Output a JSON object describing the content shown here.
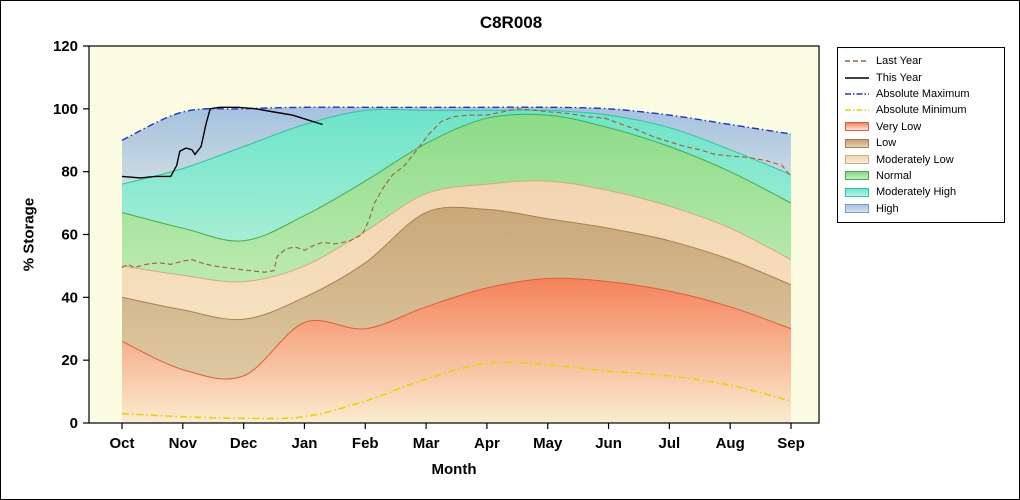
{
  "chart_data": {
    "type": "area",
    "title": "C8R008",
    "xlabel": "Month",
    "ylabel": "% Storage",
    "ylim": [
      0,
      120
    ],
    "y_ticks": [
      0,
      20,
      40,
      60,
      80,
      100,
      120
    ],
    "months": [
      "Oct",
      "Nov",
      "Dec",
      "Jan",
      "Feb",
      "Mar",
      "Apr",
      "May",
      "Jun",
      "Jul",
      "Aug",
      "Sep"
    ],
    "colors": {
      "plot_bg": "#FBFCE2",
      "abs_min": "#E5D400",
      "abs_max": "#2233BB",
      "last_year": "#A65E2E",
      "this_year": "#000000"
    },
    "series": {
      "abs_min": [
        3,
        2,
        1.5,
        2,
        7,
        14,
        19,
        18.5,
        16.5,
        15,
        12,
        7
      ],
      "very_low_top": [
        26,
        17,
        15,
        32,
        30,
        37,
        43,
        46,
        45,
        42,
        37,
        30
      ],
      "low_top": [
        40,
        36,
        33,
        40,
        51,
        67,
        68,
        65,
        62,
        58,
        52,
        44
      ],
      "mod_low_top": [
        50,
        47,
        45,
        50,
        61,
        73,
        76,
        77,
        74,
        69,
        62,
        52
      ],
      "normal_top": [
        67,
        62,
        58,
        66,
        77,
        89,
        97,
        98,
        94,
        88,
        80,
        70
      ],
      "mod_high_top": [
        76,
        81,
        88,
        95,
        99.5,
        99.5,
        99.5,
        99.5,
        98,
        94,
        87,
        79
      ],
      "abs_max": [
        90,
        99,
        100,
        100.5,
        100.5,
        100.5,
        100.5,
        100.5,
        100,
        98,
        95,
        92
      ]
    },
    "bands": [
      {
        "id": "very-low",
        "label": "Very Low",
        "lower": "zero",
        "upper": "very_low_top",
        "color": "#F4744A",
        "op_top": 0.9,
        "op_bottom": 0.12,
        "stroke": "#DC5F3A"
      },
      {
        "id": "low",
        "label": "Low",
        "lower": "very_low_top",
        "upper": "low_top",
        "color": "#B98B55",
        "op_top": 0.75,
        "op_bottom": 0.45,
        "stroke": "#A8814F"
      },
      {
        "id": "moderately-low",
        "label": "Moderately Low",
        "lower": "low_top",
        "upper": "mod_low_top",
        "color": "#F2D2AE",
        "op_top": 0.95,
        "op_bottom": 0.65,
        "stroke": "#D2AC7C"
      },
      {
        "id": "normal",
        "label": "Normal",
        "lower": "mod_low_top",
        "upper": "normal_top",
        "color": "#7ED87E",
        "op_top": 0.9,
        "op_bottom": 0.5,
        "stroke": "#47AD47"
      },
      {
        "id": "moderately-high",
        "label": "Moderately High",
        "lower": "normal_top",
        "upper": "mod_high_top",
        "color": "#5FE2C8",
        "op_top": 0.92,
        "op_bottom": 0.55,
        "stroke": "#2FC3A2"
      },
      {
        "id": "high",
        "label": "High",
        "lower": "mod_high_top",
        "upper": "abs_max",
        "color": "#9DBCE0",
        "op_top": 0.92,
        "op_bottom": 0.5
      }
    ],
    "lines": {
      "this_year": [
        [
          0,
          78.5
        ],
        [
          0.3,
          78
        ],
        [
          0.55,
          78.5
        ],
        [
          0.8,
          78.5
        ],
        [
          0.9,
          82
        ],
        [
          0.95,
          86.5
        ],
        [
          1.05,
          87.5
        ],
        [
          1.15,
          87
        ],
        [
          1.2,
          85.5
        ],
        [
          1.3,
          88
        ],
        [
          1.38,
          95
        ],
        [
          1.45,
          100
        ],
        [
          1.6,
          100.5
        ],
        [
          1.9,
          100.5
        ],
        [
          2.2,
          100
        ],
        [
          2.5,
          99
        ],
        [
          2.8,
          98
        ],
        [
          3.05,
          96.5
        ],
        [
          3.3,
          95
        ]
      ],
      "last_year": [
        [
          0,
          49.5
        ],
        [
          0.1,
          50.5
        ],
        [
          0.2,
          49.5
        ],
        [
          0.4,
          50.5
        ],
        [
          0.6,
          51
        ],
        [
          0.8,
          50.5
        ],
        [
          1.0,
          51.5
        ],
        [
          1.15,
          52
        ],
        [
          1.3,
          51
        ],
        [
          1.5,
          50
        ],
        [
          1.7,
          49.5
        ],
        [
          1.9,
          49
        ],
        [
          2.1,
          48.5
        ],
        [
          2.35,
          48
        ],
        [
          2.5,
          48.5
        ],
        [
          2.55,
          53
        ],
        [
          2.7,
          55.5
        ],
        [
          2.85,
          56
        ],
        [
          3.0,
          55
        ],
        [
          3.15,
          56.5
        ],
        [
          3.3,
          57.5
        ],
        [
          3.5,
          57
        ],
        [
          3.75,
          58
        ],
        [
          3.95,
          60
        ],
        [
          4.05,
          64
        ],
        [
          4.15,
          70
        ],
        [
          4.3,
          75
        ],
        [
          4.45,
          79
        ],
        [
          4.65,
          82
        ],
        [
          4.85,
          87
        ],
        [
          5.05,
          92
        ],
        [
          5.25,
          96
        ],
        [
          5.45,
          97.5
        ],
        [
          5.7,
          98
        ],
        [
          6.0,
          98
        ],
        [
          6.25,
          99
        ],
        [
          6.5,
          100
        ],
        [
          6.8,
          99.5
        ],
        [
          7.05,
          99
        ],
        [
          7.35,
          98.5
        ],
        [
          7.65,
          97.5
        ],
        [
          7.95,
          97
        ],
        [
          8.15,
          95.5
        ],
        [
          8.45,
          93.5
        ],
        [
          8.75,
          91
        ],
        [
          9.0,
          89.5
        ],
        [
          9.25,
          88
        ],
        [
          9.5,
          87
        ],
        [
          9.75,
          85.5
        ],
        [
          10.0,
          85
        ],
        [
          10.3,
          84.5
        ],
        [
          10.6,
          83.5
        ],
        [
          10.85,
          82
        ],
        [
          11.0,
          78.5
        ]
      ]
    }
  },
  "legend": {
    "items": [
      {
        "label": "Last Year",
        "swatch": "line",
        "icon": "last-year-line-icon",
        "color": "#A65E2E",
        "dash": "5,3"
      },
      {
        "label": "This Year",
        "swatch": "line",
        "icon": "this-year-line-icon",
        "color": "#000000",
        "dash": ""
      },
      {
        "label": "Absolute Maximum",
        "swatch": "line",
        "icon": "absolute-maximum-line-icon",
        "color": "#2233BB",
        "dash": "6,2,1.5,2"
      },
      {
        "label": "Absolute Minimum",
        "swatch": "line",
        "icon": "absolute-minimum-line-icon",
        "color": "#E5D400",
        "dash": "6,2,1.5,2"
      },
      {
        "label": "Very Low",
        "swatch": "fill",
        "icon": "very-low-swatch-icon",
        "color_top": "#F4835C",
        "color_bottom": "#FCE4D8",
        "border": "#DC5F3A"
      },
      {
        "label": "Low",
        "swatch": "fill",
        "icon": "low-swatch-icon",
        "color_top": "#C79E6E",
        "color_bottom": "#E3D2B6",
        "border": "#A8814F"
      },
      {
        "label": "Moderately Low",
        "swatch": "fill",
        "icon": "moderately-low-swatch-icon",
        "color_top": "#F3D6B6",
        "color_bottom": "#F9EBD9",
        "border": "#D2AC7C"
      },
      {
        "label": "Normal",
        "swatch": "fill",
        "icon": "normal-swatch-icon",
        "color_top": "#85D885",
        "color_bottom": "#C6EDBD",
        "border": "#47AD47"
      },
      {
        "label": "Moderately High",
        "swatch": "fill",
        "icon": "moderately-high-swatch-icon",
        "color_top": "#6FE5CE",
        "color_bottom": "#B5F2E4",
        "border": "#2FC3A2"
      },
      {
        "label": "High",
        "swatch": "fill",
        "icon": "high-swatch-icon",
        "color_top": "#A6C2E3",
        "color_bottom": "#D4E2F2",
        "border": "#7A9CC8"
      }
    ]
  }
}
